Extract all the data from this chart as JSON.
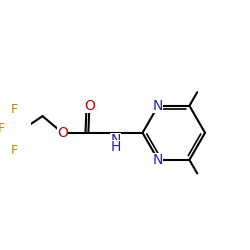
{
  "background_color": "#ffffff",
  "atom_colors": {
    "C": "#000000",
    "N": "#2222bb",
    "O": "#cc0000",
    "F": "#b8860b",
    "H": "#000000"
  },
  "bond_color": "#000000",
  "bond_width": 1.5,
  "font_size_atom": 10,
  "font_size_small": 9
}
